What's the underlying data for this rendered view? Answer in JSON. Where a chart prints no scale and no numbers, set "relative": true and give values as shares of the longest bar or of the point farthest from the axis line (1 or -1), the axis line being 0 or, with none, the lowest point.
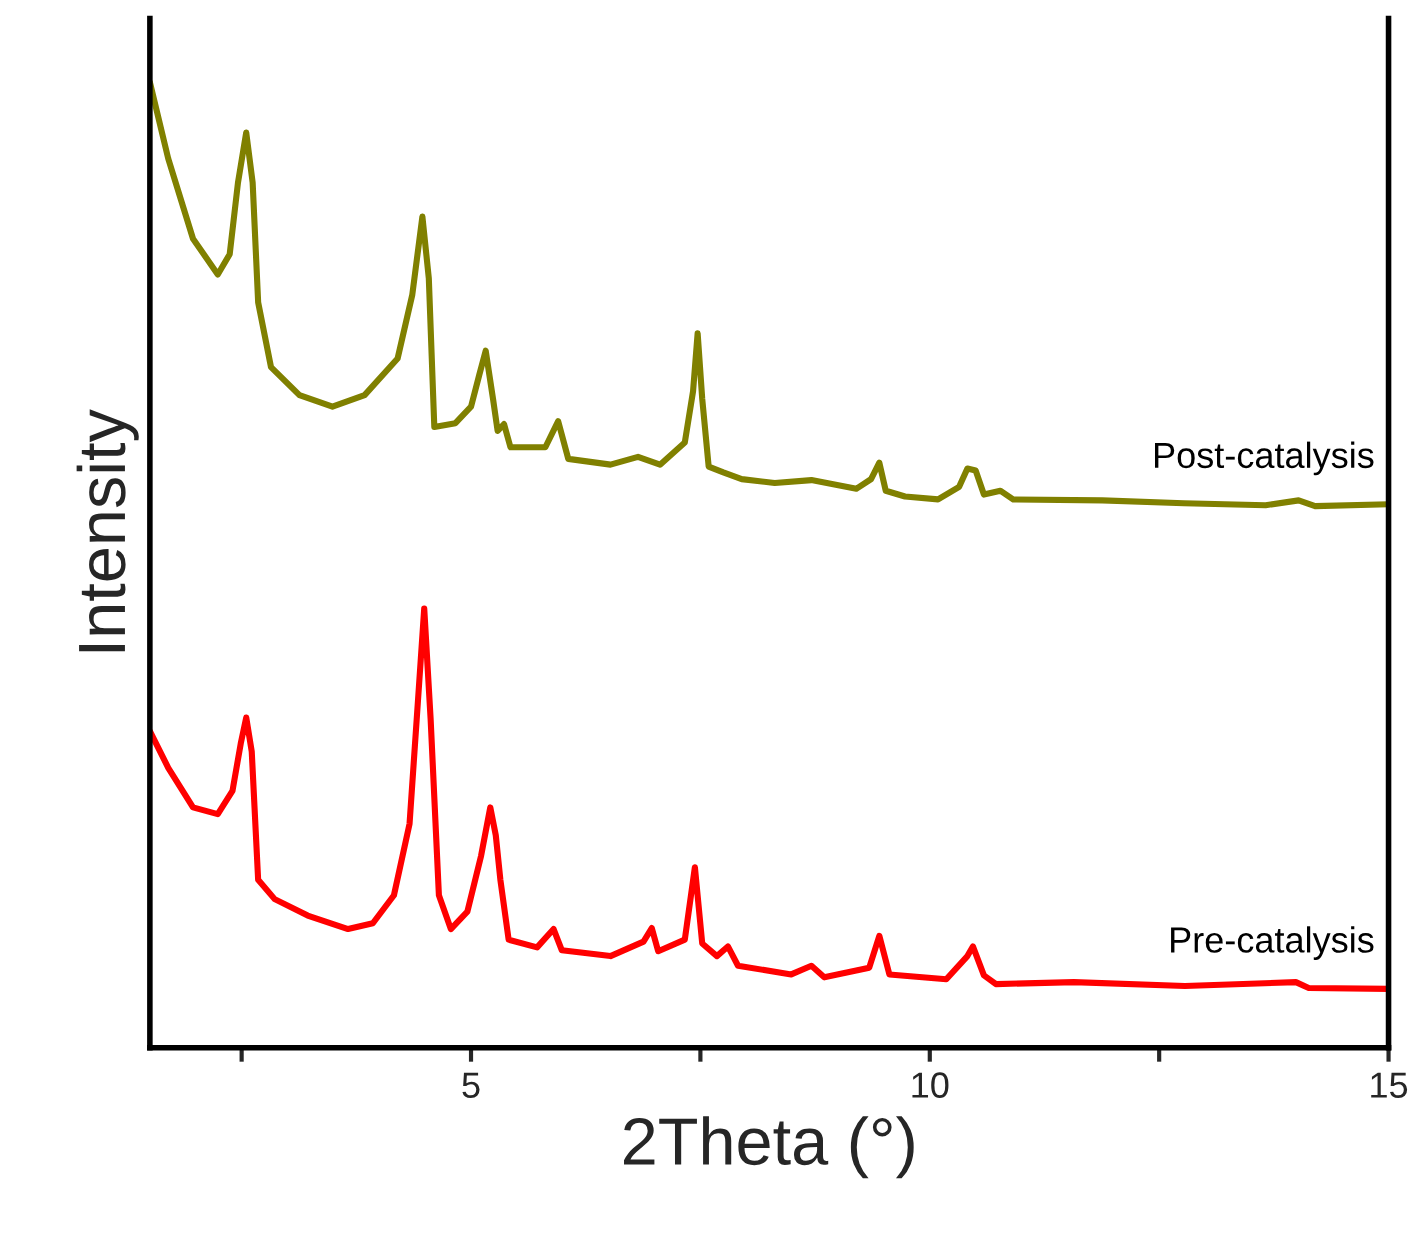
{
  "chart_data": {
    "type": "line",
    "relative": true,
    "xlabel": "2Theta (°)",
    "ylabel": "Intensity",
    "xlim": [
      1.5,
      15
    ],
    "xticks": [
      {
        "value": 2.5,
        "label": null
      },
      5,
      {
        "value": 7.5,
        "label": null
      },
      10,
      {
        "value": 12.5,
        "label": null
      },
      15
    ],
    "grid": false,
    "legend": false,
    "marker": "none",
    "line_style": "solid",
    "series": [
      {
        "name": "Post-catalysis",
        "color": "#808000",
        "x": [
          1.5,
          1.7,
          1.97,
          2.24,
          2.37,
          2.46,
          2.55,
          2.62,
          2.68,
          2.82,
          3.13,
          3.49,
          3.84,
          4.2,
          4.36,
          4.47,
          4.54,
          4.6,
          4.83,
          5.0,
          5.09,
          5.16,
          5.24,
          5.29,
          5.36,
          5.43,
          5.81,
          5.95,
          6.06,
          6.52,
          6.82,
          7.06,
          7.33,
          7.42,
          7.47,
          7.52,
          7.59,
          7.75,
          7.95,
          8.31,
          8.71,
          9.2,
          9.36,
          9.45,
          9.52,
          9.73,
          10.09,
          10.32,
          10.41,
          10.5,
          10.59,
          10.77,
          10.91,
          11.88,
          12.77,
          13.66,
          14.02,
          14.2,
          15.0
        ],
        "values": [
          1.0,
          0.921,
          0.838,
          0.801,
          0.822,
          0.896,
          0.948,
          0.896,
          0.772,
          0.705,
          0.676,
          0.664,
          0.676,
          0.714,
          0.78,
          0.861,
          0.797,
          0.643,
          0.647,
          0.664,
          0.697,
          0.722,
          0.672,
          0.639,
          0.646,
          0.622,
          0.622,
          0.649,
          0.61,
          0.604,
          0.612,
          0.604,
          0.627,
          0.68,
          0.74,
          0.672,
          0.602,
          0.596,
          0.589,
          0.585,
          0.588,
          0.579,
          0.589,
          0.606,
          0.577,
          0.571,
          0.568,
          0.581,
          0.6,
          0.598,
          0.573,
          0.577,
          0.568,
          0.567,
          0.564,
          0.562,
          0.567,
          0.561,
          0.563
        ]
      },
      {
        "name": "Pre-catalysis",
        "color": "#ff0000",
        "x": [
          1.5,
          1.7,
          1.97,
          2.24,
          2.4,
          2.49,
          2.55,
          2.61,
          2.68,
          2.86,
          3.22,
          3.66,
          3.93,
          4.16,
          4.33,
          4.42,
          4.49,
          4.56,
          4.65,
          4.78,
          4.96,
          5.11,
          5.21,
          5.27,
          5.32,
          5.41,
          5.72,
          5.9,
          5.99,
          6.52,
          6.88,
          6.97,
          7.04,
          7.33,
          7.44,
          7.52,
          7.68,
          7.8,
          7.91,
          8.49,
          8.71,
          8.85,
          9.34,
          9.45,
          9.56,
          10.18,
          10.41,
          10.47,
          10.59,
          10.72,
          11.57,
          12.78,
          13.99,
          14.13,
          15.0
        ],
        "values": [
          0.328,
          0.29,
          0.249,
          0.242,
          0.266,
          0.315,
          0.342,
          0.307,
          0.174,
          0.154,
          0.137,
          0.123,
          0.129,
          0.158,
          0.232,
          0.357,
          0.455,
          0.34,
          0.158,
          0.123,
          0.141,
          0.199,
          0.249,
          0.22,
          0.174,
          0.112,
          0.104,
          0.123,
          0.101,
          0.095,
          0.11,
          0.124,
          0.1,
          0.112,
          0.187,
          0.108,
          0.095,
          0.105,
          0.085,
          0.076,
          0.085,
          0.073,
          0.083,
          0.116,
          0.076,
          0.071,
          0.095,
          0.105,
          0.075,
          0.066,
          0.068,
          0.064,
          0.068,
          0.062,
          0.061
        ]
      }
    ]
  }
}
